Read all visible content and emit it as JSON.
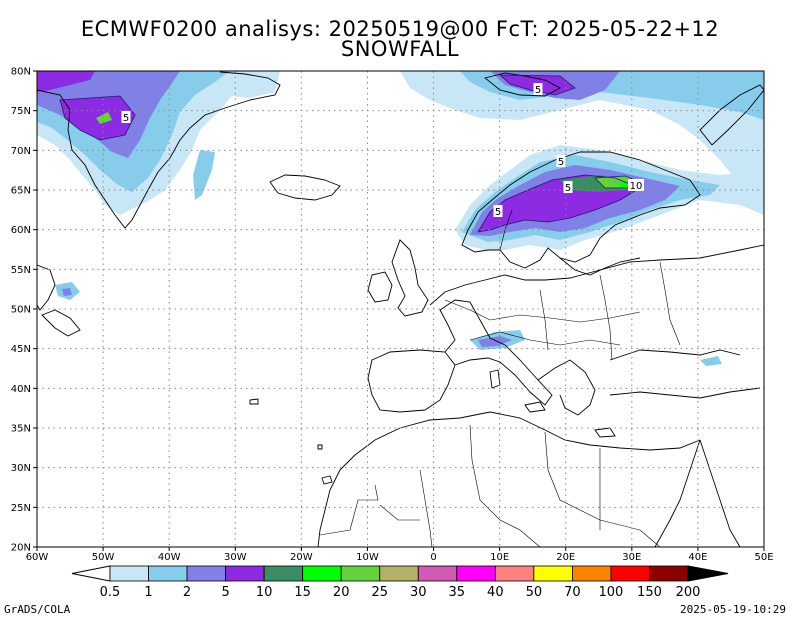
{
  "header": {
    "line1": "ECMWF0200 analisys: 20250519@00 FcT: 2025-05-22+12",
    "line2": "SNOWFALL"
  },
  "axes": {
    "x_ticks": [
      "60W",
      "50W",
      "40W",
      "30W",
      "20W",
      "10W",
      "0",
      "10E",
      "20E",
      "30E",
      "40E",
      "50E"
    ],
    "y_ticks": [
      "20N",
      "25N",
      "30N",
      "35N",
      "40N",
      "45N",
      "50N",
      "55N",
      "60N",
      "65N",
      "70N",
      "75N",
      "80N"
    ]
  },
  "colorbar": {
    "levels": [
      "0.5",
      "1",
      "2",
      "5",
      "10",
      "15",
      "20",
      "25",
      "30",
      "35",
      "40",
      "50",
      "70",
      "100",
      "150",
      "200"
    ],
    "colors": [
      "#c8e6f5",
      "#87cdeb",
      "#8080e6",
      "#8c2be2",
      "#3c8c64",
      "#00ff00",
      "#64d23c",
      "#b4af69",
      "#d25ab4",
      "#ff00ff",
      "#ff8080",
      "#ffff00",
      "#ff8200",
      "#ff0000",
      "#8c0000"
    ]
  },
  "contour_labels": [
    "5",
    "5",
    "5",
    "5",
    "5",
    "10"
  ],
  "footer": {
    "credit": "GrADS/COLA",
    "timestamp": "2025-05-19-10:29"
  }
}
